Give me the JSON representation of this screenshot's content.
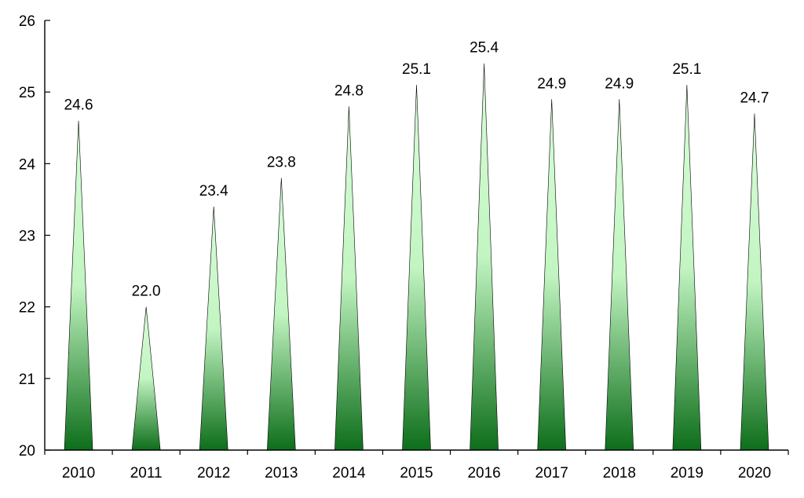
{
  "chart_data": {
    "type": "bar",
    "mark_shape": "triangle",
    "categories": [
      "2010",
      "2011",
      "2012",
      "2013",
      "2014",
      "2015",
      "2016",
      "2017",
      "2018",
      "2019",
      "2020"
    ],
    "values": [
      24.6,
      22.0,
      23.4,
      23.8,
      24.8,
      25.1,
      25.4,
      24.9,
      24.9,
      25.1,
      24.7
    ],
    "data_labels": [
      "24.6",
      "22.0",
      "23.4",
      "23.8",
      "24.8",
      "25.1",
      "25.4",
      "24.9",
      "24.9",
      "25.1",
      "24.7"
    ],
    "y_ticks": [
      "20",
      "21",
      "22",
      "23",
      "24",
      "25",
      "26"
    ],
    "ylim": [
      20,
      26
    ],
    "title": "",
    "xlabel": "",
    "ylabel": "",
    "grid": false,
    "legend": "none",
    "colors": {
      "fill_top": "#d8fcd8",
      "fill_mid": "#c2f5c2",
      "fill_bottom": "#0d6e1a",
      "outline": "#000000",
      "axis": "#000000"
    }
  }
}
